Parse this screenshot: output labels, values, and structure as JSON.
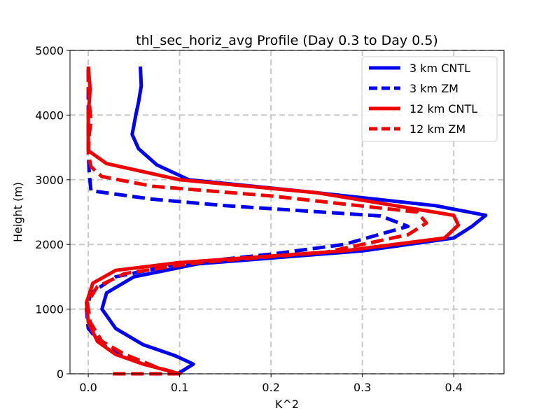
{
  "chart_data": {
    "type": "line",
    "title": "thl_sec_horiz_avg Profile (Day 0.3 to Day 0.5)",
    "xlabel": "K^2",
    "ylabel": "Height (m)",
    "xlim": [
      -0.02,
      0.455
    ],
    "ylim": [
      0,
      5000
    ],
    "xticks": [
      0.0,
      0.1,
      0.2,
      0.3,
      0.4
    ],
    "xtick_labels": [
      "0.0",
      "0.1",
      "0.2",
      "0.3",
      "0.4"
    ],
    "yticks": [
      0,
      1000,
      2000,
      3000,
      4000,
      5000
    ],
    "ytick_labels": [
      "0",
      "1000",
      "2000",
      "3000",
      "4000",
      "5000"
    ],
    "grid": true,
    "legend_position": "top-right",
    "series": [
      {
        "name": "3 km CNTL",
        "color": "#0000ee",
        "dash": "solid",
        "points": [
          [
            0.098,
            0
          ],
          [
            0.115,
            150
          ],
          [
            0.095,
            280
          ],
          [
            0.06,
            450
          ],
          [
            0.03,
            700
          ],
          [
            0.015,
            1000
          ],
          [
            0.02,
            1250
          ],
          [
            0.05,
            1500
          ],
          [
            0.12,
            1700
          ],
          [
            0.3,
            1900
          ],
          [
            0.4,
            2100
          ],
          [
            0.42,
            2280
          ],
          [
            0.435,
            2450
          ],
          [
            0.38,
            2600
          ],
          [
            0.25,
            2800
          ],
          [
            0.11,
            3000
          ],
          [
            0.075,
            3230
          ],
          [
            0.055,
            3480
          ],
          [
            0.048,
            3700
          ],
          [
            0.052,
            4000
          ],
          [
            0.055,
            4200
          ],
          [
            0.058,
            4450
          ],
          [
            0.057,
            4750
          ]
        ]
      },
      {
        "name": "3 km ZM",
        "color": "#0000ee",
        "dash": "dashed",
        "points": [
          [
            0.075,
            100
          ],
          [
            0.04,
            250
          ],
          [
            0.015,
            450
          ],
          [
            0.0,
            700
          ],
          [
            -0.002,
            1000
          ],
          [
            0.003,
            1250
          ],
          [
            0.03,
            1500
          ],
          [
            0.1,
            1700
          ],
          [
            0.2,
            1850
          ],
          [
            0.28,
            2000
          ],
          [
            0.35,
            2280
          ],
          [
            0.32,
            2440
          ],
          [
            0.15,
            2600
          ],
          [
            0.07,
            2700
          ],
          [
            0.003,
            2830
          ],
          [
            0.001,
            3100
          ],
          [
            0.0,
            3500
          ],
          [
            0.0,
            4000
          ],
          [
            0.0,
            4750
          ]
        ]
      },
      {
        "name": "12 km CNTL",
        "color": "#ee0000",
        "dash": "solid",
        "points": [
          [
            0.1,
            0
          ],
          [
            0.06,
            150
          ],
          [
            0.03,
            300
          ],
          [
            0.01,
            500
          ],
          [
            0.0,
            800
          ],
          [
            -0.002,
            1100
          ],
          [
            0.005,
            1400
          ],
          [
            0.03,
            1600
          ],
          [
            0.1,
            1720
          ],
          [
            0.28,
            1900
          ],
          [
            0.39,
            2100
          ],
          [
            0.405,
            2300
          ],
          [
            0.4,
            2450
          ],
          [
            0.25,
            2800
          ],
          [
            0.1,
            3000
          ],
          [
            0.02,
            3250
          ],
          [
            0.0,
            3450
          ],
          [
            0.0,
            3700
          ],
          [
            0.0,
            4000
          ],
          [
            0.002,
            4400
          ],
          [
            0.0,
            4750
          ]
        ]
      },
      {
        "name": "12 km ZM",
        "color": "#ee0000",
        "dash": "dashed",
        "points": [
          [
            0.027,
            0
          ],
          [
            0.1,
            0
          ],
          [
            0.075,
            100
          ],
          [
            0.04,
            300
          ],
          [
            0.015,
            500
          ],
          [
            0.002,
            800
          ],
          [
            -0.001,
            1100
          ],
          [
            0.01,
            1350
          ],
          [
            0.04,
            1550
          ],
          [
            0.12,
            1720
          ],
          [
            0.26,
            1880
          ],
          [
            0.35,
            2150
          ],
          [
            0.37,
            2330
          ],
          [
            0.36,
            2500
          ],
          [
            0.2,
            2750
          ],
          [
            0.07,
            2900
          ],
          [
            0.015,
            3050
          ],
          [
            0.003,
            3200
          ],
          [
            0.0,
            3400
          ],
          [
            0.001,
            3700
          ],
          [
            0.003,
            3900
          ],
          [
            0.001,
            4200
          ],
          [
            0.0,
            4500
          ],
          [
            0.0,
            4750
          ]
        ]
      }
    ]
  }
}
